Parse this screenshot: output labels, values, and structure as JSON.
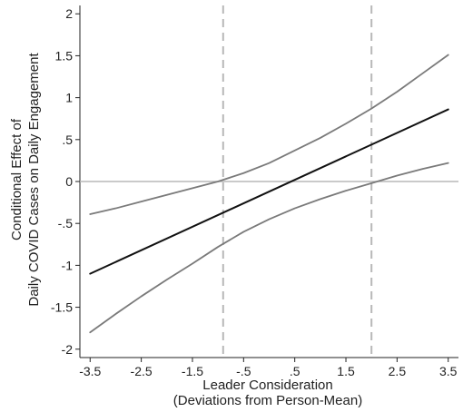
{
  "chart_data": {
    "type": "line",
    "title": "",
    "xlabel": "Leader Consideration",
    "xlabel_sub": "(Deviations from Person-Mean)",
    "ylabel": "Conditional Effect of",
    "ylabel_sub": "Daily COVID Cases on Daily Engagement",
    "xlim": [
      -3.7,
      3.7
    ],
    "ylim": [
      -2.1,
      2.1
    ],
    "x_ticks": [
      -3.5,
      -2.5,
      -1.5,
      -0.5,
      0.5,
      1.5,
      2.5,
      3.5
    ],
    "x_tick_labels": [
      "-3.5",
      "-2.5",
      "-1.5",
      "-.5",
      ".5",
      "1.5",
      "2.5",
      "3.5"
    ],
    "y_ticks": [
      2,
      1.5,
      1,
      0.5,
      0,
      -0.5,
      -1,
      -1.5,
      -2
    ],
    "y_tick_labels": [
      "2",
      "1.5",
      "1",
      ".5",
      "0",
      "-.5",
      "-1",
      "-1.5",
      "-2"
    ],
    "grid": false,
    "reference_lines": {
      "horizontal_y": 0,
      "vertical_x": [
        -0.9,
        2.0
      ]
    },
    "series": [
      {
        "role": "upper-ci",
        "color": "#7a7a7a",
        "x": [
          -3.5,
          -3.0,
          -2.5,
          -2.0,
          -1.5,
          -1.0,
          -0.5,
          0.0,
          0.5,
          1.0,
          1.5,
          2.0,
          2.5,
          3.0,
          3.5
        ],
        "y": [
          -0.39,
          -0.32,
          -0.24,
          -0.16,
          -0.08,
          0.0,
          0.1,
          0.22,
          0.37,
          0.52,
          0.69,
          0.87,
          1.07,
          1.29,
          1.51
        ]
      },
      {
        "role": "conditional-effect",
        "color": "#111111",
        "x": [
          -3.5,
          3.5
        ],
        "y": [
          -1.1,
          0.86
        ]
      },
      {
        "role": "lower-ci",
        "color": "#7a7a7a",
        "x": [
          -3.5,
          -3.0,
          -2.5,
          -2.0,
          -1.5,
          -1.0,
          -0.5,
          0.0,
          0.5,
          1.0,
          1.5,
          2.0,
          2.5,
          3.0,
          3.5
        ],
        "y": [
          -1.8,
          -1.58,
          -1.37,
          -1.17,
          -0.98,
          -0.78,
          -0.6,
          -0.45,
          -0.32,
          -0.21,
          -0.11,
          -0.02,
          0.07,
          0.15,
          0.22
        ]
      }
    ]
  }
}
